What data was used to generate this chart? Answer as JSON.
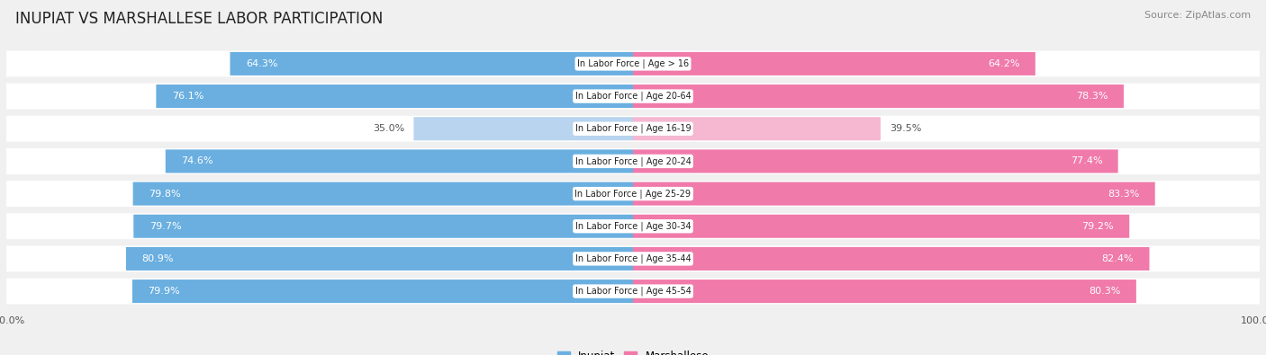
{
  "title": "INUPIAT VS MARSHALLESE LABOR PARTICIPATION",
  "source": "Source: ZipAtlas.com",
  "categories": [
    "In Labor Force | Age > 16",
    "In Labor Force | Age 20-64",
    "In Labor Force | Age 16-19",
    "In Labor Force | Age 20-24",
    "In Labor Force | Age 25-29",
    "In Labor Force | Age 30-34",
    "In Labor Force | Age 35-44",
    "In Labor Force | Age 45-54"
  ],
  "inupiat_values": [
    64.3,
    76.1,
    35.0,
    74.6,
    79.8,
    79.7,
    80.9,
    79.9
  ],
  "marshallese_values": [
    64.2,
    78.3,
    39.5,
    77.4,
    83.3,
    79.2,
    82.4,
    80.3
  ],
  "inupiat_color": "#6aafe0",
  "inupiat_color_light": "#b8d4ee",
  "marshallese_color": "#f07aaa",
  "marshallese_color_light": "#f5b8d0",
  "background_color": "#f0f0f0",
  "row_bg_even": "#e8e8e8",
  "row_bg_odd": "#f8f8f8",
  "title_fontsize": 12,
  "label_fontsize": 8,
  "source_fontsize": 8,
  "tick_fontsize": 8,
  "max_value": 100.0
}
